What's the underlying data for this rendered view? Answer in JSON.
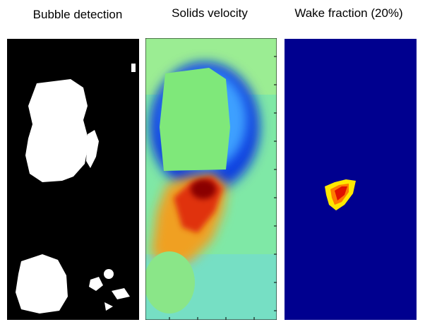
{
  "panels": [
    {
      "title": "Bubble detection"
    },
    {
      "title": "Solids velocity"
    },
    {
      "title": "Wake fraction (20%)"
    }
  ]
}
